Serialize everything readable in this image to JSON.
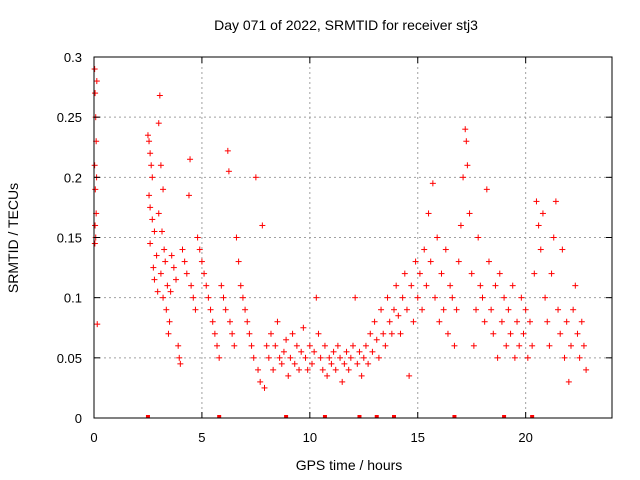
{
  "chart_data": {
    "type": "scatter",
    "title": "Day 071 of 2022, SRMTID for receiver stj3",
    "xlabel": "GPS time / hours",
    "ylabel": "SRMTID / TECUs",
    "xlim": [
      0,
      24
    ],
    "ylim": [
      0,
      0.3
    ],
    "xticks": [
      0,
      5,
      10,
      15,
      20
    ],
    "xtick_labels": [
      "0",
      "5",
      "10",
      "15",
      "20"
    ],
    "yticks": [
      0,
      0.05,
      0.1,
      0.15,
      0.2,
      0.25,
      0.3
    ],
    "ytick_labels": [
      "0",
      "0.05",
      "0.1",
      "0.15",
      "0.2",
      "0.25",
      "0.3"
    ],
    "grid": true,
    "marker": "+",
    "color": "#ff0000",
    "series": [
      {
        "points": [
          [
            0.03,
            0.29
          ],
          [
            0.05,
            0.27
          ],
          [
            0.08,
            0.25
          ],
          [
            0.1,
            0.23
          ],
          [
            0.03,
            0.21
          ],
          [
            0.06,
            0.19
          ],
          [
            0.1,
            0.17
          ],
          [
            0.05,
            0.16
          ],
          [
            0.08,
            0.15
          ],
          [
            0.12,
            0.2
          ],
          [
            0.15,
            0.078
          ],
          [
            0.04,
            0.145
          ],
          [
            0.13,
            0.28
          ],
          [
            2.5,
            0.235
          ],
          [
            2.55,
            0.23
          ],
          [
            2.6,
            0.22
          ],
          [
            2.65,
            0.21
          ],
          [
            2.7,
            0.2
          ],
          [
            2.55,
            0.185
          ],
          [
            2.6,
            0.175
          ],
          [
            2.7,
            0.165
          ],
          [
            2.8,
            0.155
          ],
          [
            2.6,
            0.145
          ],
          [
            2.9,
            0.135
          ],
          [
            2.75,
            0.125
          ],
          [
            2.8,
            0.115
          ],
          [
            2.95,
            0.105
          ],
          [
            3.05,
            0.268
          ],
          [
            3.0,
            0.245
          ],
          [
            3.1,
            0.21
          ],
          [
            3.2,
            0.19
          ],
          [
            3.0,
            0.17
          ],
          [
            3.15,
            0.155
          ],
          [
            3.25,
            0.14
          ],
          [
            3.3,
            0.13
          ],
          [
            3.1,
            0.12
          ],
          [
            3.4,
            0.11
          ],
          [
            3.2,
            0.1
          ],
          [
            3.35,
            0.09
          ],
          [
            3.5,
            0.08
          ],
          [
            3.45,
            0.07
          ],
          [
            3.6,
            0.135
          ],
          [
            3.7,
            0.125
          ],
          [
            3.8,
            0.115
          ],
          [
            3.55,
            0.105
          ],
          [
            3.9,
            0.06
          ],
          [
            3.95,
            0.05
          ],
          [
            4.0,
            0.045
          ],
          [
            4.1,
            0.14
          ],
          [
            4.2,
            0.13
          ],
          [
            4.3,
            0.12
          ],
          [
            4.4,
            0.185
          ],
          [
            4.45,
            0.215
          ],
          [
            4.5,
            0.11
          ],
          [
            4.6,
            0.1
          ],
          [
            4.7,
            0.09
          ],
          [
            4.8,
            0.15
          ],
          [
            4.9,
            0.14
          ],
          [
            5.0,
            0.13
          ],
          [
            5.1,
            0.12
          ],
          [
            5.2,
            0.11
          ],
          [
            5.3,
            0.1
          ],
          [
            5.4,
            0.09
          ],
          [
            5.5,
            0.08
          ],
          [
            5.6,
            0.07
          ],
          [
            5.7,
            0.06
          ],
          [
            5.8,
            0.05
          ],
          [
            5.9,
            0.11
          ],
          [
            6.0,
            0.1
          ],
          [
            6.1,
            0.09
          ],
          [
            6.2,
            0.222
          ],
          [
            6.25,
            0.205
          ],
          [
            6.3,
            0.08
          ],
          [
            6.4,
            0.07
          ],
          [
            6.5,
            0.06
          ],
          [
            6.6,
            0.15
          ],
          [
            6.7,
            0.13
          ],
          [
            6.8,
            0.11
          ],
          [
            6.9,
            0.1
          ],
          [
            7.0,
            0.09
          ],
          [
            7.1,
            0.08
          ],
          [
            7.2,
            0.07
          ],
          [
            7.3,
            0.06
          ],
          [
            7.4,
            0.05
          ],
          [
            7.5,
            0.2
          ],
          [
            7.6,
            0.04
          ],
          [
            7.7,
            0.03
          ],
          [
            7.8,
            0.16
          ],
          [
            7.9,
            0.025
          ],
          [
            8.0,
            0.06
          ],
          [
            8.1,
            0.05
          ],
          [
            8.2,
            0.07
          ],
          [
            8.3,
            0.04
          ],
          [
            8.4,
            0.06
          ],
          [
            8.5,
            0.08
          ],
          [
            8.6,
            0.05
          ],
          [
            8.7,
            0.045
          ],
          [
            8.8,
            0.055
          ],
          [
            8.9,
            0.065
          ],
          [
            9.0,
            0.035
          ],
          [
            9.1,
            0.05
          ],
          [
            9.2,
            0.07
          ],
          [
            9.3,
            0.045
          ],
          [
            9.4,
            0.06
          ],
          [
            9.5,
            0.04
          ],
          [
            9.6,
            0.055
          ],
          [
            9.7,
            0.075
          ],
          [
            9.8,
            0.05
          ],
          [
            9.9,
            0.04
          ],
          [
            10.0,
            0.06
          ],
          [
            10.1,
            0.045
          ],
          [
            10.2,
            0.055
          ],
          [
            10.3,
            0.1
          ],
          [
            10.4,
            0.07
          ],
          [
            10.5,
            0.05
          ],
          [
            10.6,
            0.04
          ],
          [
            10.7,
            0.06
          ],
          [
            10.8,
            0.035
          ],
          [
            10.9,
            0.05
          ],
          [
            11.0,
            0.045
          ],
          [
            11.1,
            0.055
          ],
          [
            11.2,
            0.04
          ],
          [
            11.3,
            0.06
          ],
          [
            11.4,
            0.05
          ],
          [
            11.5,
            0.03
          ],
          [
            11.6,
            0.045
          ],
          [
            11.7,
            0.055
          ],
          [
            11.8,
            0.04
          ],
          [
            11.9,
            0.05
          ],
          [
            12.0,
            0.06
          ],
          [
            12.1,
            0.1
          ],
          [
            12.2,
            0.045
          ],
          [
            12.3,
            0.055
          ],
          [
            12.4,
            0.035
          ],
          [
            12.5,
            0.05
          ],
          [
            12.6,
            0.06
          ],
          [
            12.7,
            0.045
          ],
          [
            12.8,
            0.07
          ],
          [
            12.9,
            0.055
          ],
          [
            13.0,
            0.08
          ],
          [
            13.1,
            0.065
          ],
          [
            13.2,
            0.05
          ],
          [
            13.3,
            0.09
          ],
          [
            13.4,
            0.07
          ],
          [
            13.5,
            0.06
          ],
          [
            13.6,
            0.1
          ],
          [
            13.7,
            0.08
          ],
          [
            13.8,
            0.07
          ],
          [
            13.9,
            0.09
          ],
          [
            14.0,
            0.11
          ],
          [
            14.1,
            0.085
          ],
          [
            14.2,
            0.07
          ],
          [
            14.3,
            0.1
          ],
          [
            14.4,
            0.12
          ],
          [
            14.5,
            0.09
          ],
          [
            14.6,
            0.035
          ],
          [
            14.7,
            0.11
          ],
          [
            14.8,
            0.08
          ],
          [
            14.9,
            0.13
          ],
          [
            15.0,
            0.1
          ],
          [
            15.1,
            0.12
          ],
          [
            15.2,
            0.09
          ],
          [
            15.3,
            0.14
          ],
          [
            15.4,
            0.11
          ],
          [
            15.5,
            0.17
          ],
          [
            15.6,
            0.13
          ],
          [
            15.7,
            0.195
          ],
          [
            15.8,
            0.1
          ],
          [
            15.9,
            0.15
          ],
          [
            16.0,
            0.08
          ],
          [
            16.1,
            0.12
          ],
          [
            16.2,
            0.09
          ],
          [
            16.3,
            0.14
          ],
          [
            16.4,
            0.07
          ],
          [
            16.5,
            0.11
          ],
          [
            16.6,
            0.1
          ],
          [
            16.7,
            0.06
          ],
          [
            16.8,
            0.09
          ],
          [
            16.9,
            0.13
          ],
          [
            17.0,
            0.16
          ],
          [
            17.1,
            0.2
          ],
          [
            17.2,
            0.24
          ],
          [
            17.25,
            0.23
          ],
          [
            17.3,
            0.21
          ],
          [
            17.4,
            0.17
          ],
          [
            17.5,
            0.12
          ],
          [
            17.6,
            0.06
          ],
          [
            17.7,
            0.09
          ],
          [
            17.8,
            0.15
          ],
          [
            17.9,
            0.11
          ],
          [
            18.0,
            0.1
          ],
          [
            18.1,
            0.08
          ],
          [
            18.2,
            0.19
          ],
          [
            18.3,
            0.13
          ],
          [
            18.4,
            0.09
          ],
          [
            18.5,
            0.07
          ],
          [
            18.6,
            0.11
          ],
          [
            18.7,
            0.05
          ],
          [
            18.8,
            0.12
          ],
          [
            18.9,
            0.08
          ],
          [
            19.0,
            0.1
          ],
          [
            19.1,
            0.06
          ],
          [
            19.2,
            0.09
          ],
          [
            19.3,
            0.07
          ],
          [
            19.4,
            0.11
          ],
          [
            19.5,
            0.05
          ],
          [
            19.6,
            0.08
          ],
          [
            19.7,
            0.06
          ],
          [
            19.8,
            0.1
          ],
          [
            19.9,
            0.07
          ],
          [
            20.0,
            0.09
          ],
          [
            20.1,
            0.05
          ],
          [
            20.2,
            0.08
          ],
          [
            20.3,
            0.06
          ],
          [
            20.4,
            0.12
          ],
          [
            20.5,
            0.18
          ],
          [
            20.6,
            0.16
          ],
          [
            20.7,
            0.14
          ],
          [
            20.8,
            0.17
          ],
          [
            20.9,
            0.1
          ],
          [
            21.0,
            0.08
          ],
          [
            21.1,
            0.06
          ],
          [
            21.2,
            0.12
          ],
          [
            21.3,
            0.15
          ],
          [
            21.4,
            0.18
          ],
          [
            21.5,
            0.09
          ],
          [
            21.6,
            0.07
          ],
          [
            21.7,
            0.14
          ],
          [
            21.8,
            0.05
          ],
          [
            21.9,
            0.08
          ],
          [
            22.0,
            0.03
          ],
          [
            22.1,
            0.06
          ],
          [
            22.2,
            0.09
          ],
          [
            22.3,
            0.11
          ],
          [
            22.4,
            0.07
          ],
          [
            22.5,
            0.05
          ],
          [
            22.6,
            0.08
          ],
          [
            22.7,
            0.06
          ],
          [
            22.8,
            0.04
          ]
        ]
      }
    ],
    "axis_markers": [
      2.5,
      5.8,
      8.9,
      10.7,
      12.3,
      13.1,
      13.9,
      16.7,
      19.0,
      20.3
    ]
  }
}
